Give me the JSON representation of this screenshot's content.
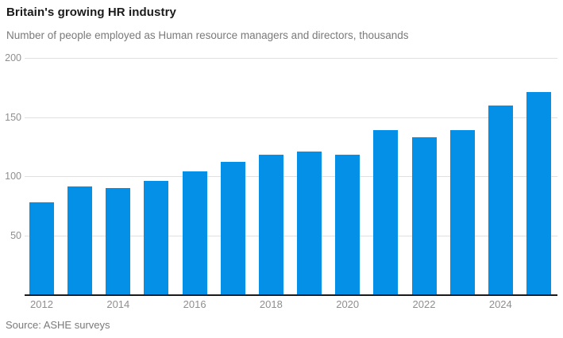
{
  "header": {
    "title": "Britain's growing HR industry",
    "subtitle": "Number of people employed as Human resource managers and directors, thousands"
  },
  "footer": {
    "source": "Source: ASHE surveys"
  },
  "colors": {
    "bar": "#0590e8",
    "grid": "#e0e0e0",
    "axis": "#1a1a1a",
    "tick_label": "#8f8f8f",
    "title": "#1a1a1a",
    "muted_text": "#7a7a7a",
    "background": "#ffffff"
  },
  "chart_data": {
    "type": "bar",
    "title": "Britain's growing HR industry",
    "subtitle": "Number of people employed as Human resource managers and directors, thousands",
    "source": "Source: ASHE surveys",
    "categories": [
      2012,
      2013,
      2014,
      2015,
      2016,
      2017,
      2018,
      2019,
      2020,
      2021,
      2022,
      2023,
      2024,
      2025
    ],
    "values": [
      78,
      91,
      90,
      96,
      104,
      112,
      118,
      121,
      118,
      139,
      133,
      139,
      160,
      171
    ],
    "xlabel": "",
    "ylabel": "",
    "ylim": [
      0,
      200
    ],
    "yticks": [
      50,
      100,
      150,
      200
    ],
    "xticks": [
      2012,
      2014,
      2016,
      2018,
      2020,
      2022,
      2024
    ],
    "grid": "horizontal",
    "legend": "none",
    "bar_color": "#0590e8"
  }
}
